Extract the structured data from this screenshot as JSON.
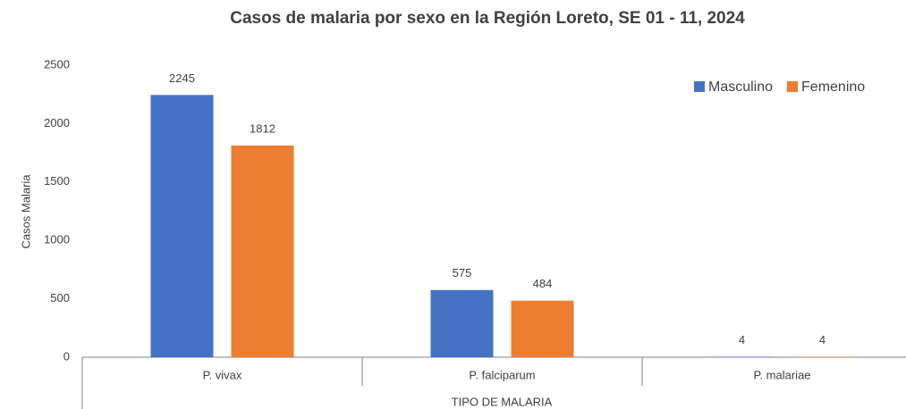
{
  "chart_data": {
    "type": "bar",
    "title": "Casos de malaria por sexo en la Región Loreto, SE 01 - 11, 2024",
    "x_label": "TIPO DE MALARIA",
    "y_label": "Casos Malaria",
    "categories": [
      "P. vivax",
      "P. falciparum",
      "P. malariae"
    ],
    "series": [
      {
        "name": "Masculino",
        "color": "#4472c4",
        "values": [
          2245,
          575,
          4
        ]
      },
      {
        "name": "Femenino",
        "color": "#ed7d31",
        "values": [
          1812,
          484,
          4
        ]
      }
    ],
    "ylim": [
      0,
      2500
    ],
    "yticks": [
      0,
      500,
      1000,
      1500,
      2000,
      2500
    ],
    "grid": false,
    "legend": "top-right"
  }
}
